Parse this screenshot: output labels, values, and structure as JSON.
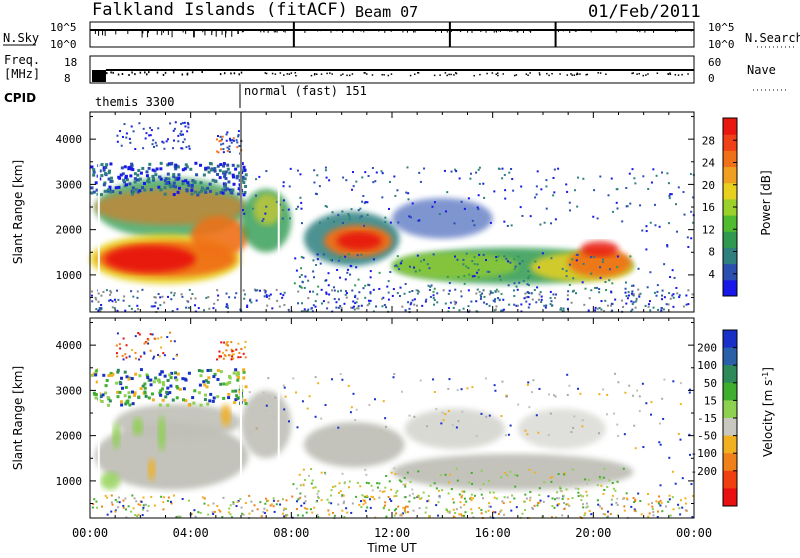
{
  "header": {
    "site": "Falkland Islands (fitACF)",
    "beam": "Beam 07",
    "date": "01/Feb/2011"
  },
  "strips": {
    "nsky": {
      "label": "N.Sky",
      "ticks": [
        "10^5",
        "10^0"
      ]
    },
    "nsearch": {
      "label": "N.Search",
      "ticks": [
        "10^5",
        "10^0"
      ]
    },
    "freq": {
      "label_line1": "Freq.",
      "label_line2": "[MHz]",
      "ticks": [
        "18",
        "8"
      ]
    },
    "nave": {
      "label": "Nave",
      "ticks": [
        "60",
        "0"
      ]
    },
    "cpid": {
      "label": "CPID",
      "segments": [
        "themis 3300",
        "normal (fast) 151"
      ]
    }
  },
  "chart_data": [
    {
      "type": "heatmap",
      "quantity": "Power",
      "ylabel": "Slant Range [km]",
      "xlabel": "",
      "yticks": [
        1000,
        2000,
        3000,
        4000
      ],
      "ylim": [
        180,
        4600
      ],
      "xlim": [
        0,
        24
      ],
      "colorbar": {
        "label": "Power [dB]",
        "ticks": [
          4,
          8,
          12,
          16,
          20,
          24,
          28
        ],
        "range": [
          0,
          32
        ],
        "colors": [
          "#1818e8",
          "#2a4fb0",
          "#2f7f7f",
          "#2f9a4f",
          "#4fbb2f",
          "#9cd02a",
          "#e8d020",
          "#f0a020",
          "#f07018",
          "#f04018",
          "#e81810"
        ]
      },
      "echo_regions": [
        {
          "t": [
            0.0,
            2.0
          ],
          "range": [
            900,
            1900
          ],
          "level": "high"
        },
        {
          "t": [
            2.0,
            6.0
          ],
          "range": [
            1000,
            2100
          ],
          "level": "high"
        },
        {
          "t": [
            0.2,
            6.0
          ],
          "range": [
            1900,
            3200
          ],
          "level": "mid"
        },
        {
          "t": [
            6.0,
            8.0
          ],
          "range": [
            1300,
            2900
          ],
          "level": "mid"
        },
        {
          "t": [
            9.5,
            12.0
          ],
          "range": [
            1200,
            2300
          ],
          "level": "high"
        },
        {
          "t": [
            12.0,
            21.5
          ],
          "range": [
            700,
            1600
          ],
          "level": "mid"
        },
        {
          "t": [
            19.0,
            21.5
          ],
          "range": [
            900,
            1700
          ],
          "level": "high"
        }
      ]
    },
    {
      "type": "heatmap",
      "quantity": "Velocity",
      "ylabel": "Slant Range [km]",
      "xlabel": "Time UT",
      "yticks": [
        1000,
        2000,
        3000,
        4000
      ],
      "ylim": [
        180,
        4600
      ],
      "xlim": [
        0,
        24
      ],
      "xticklabels": [
        "00:00",
        "04:00",
        "08:00",
        "12:00",
        "16:00",
        "20:00",
        "00:00"
      ],
      "colorbar": {
        "label": "Velocity [m s-1]",
        "ticks": [
          200,
          100,
          50,
          15,
          -15,
          -50,
          -100,
          -200
        ],
        "colors": [
          "#1830c8",
          "#2a60a8",
          "#2f8a5a",
          "#3fae2f",
          "#8ed050",
          "#c8c8c0",
          "#f0b020",
          "#f08018",
          "#f04010",
          "#e81010"
        ]
      },
      "ground_scatter_color": "#c0c0b8"
    }
  ]
}
